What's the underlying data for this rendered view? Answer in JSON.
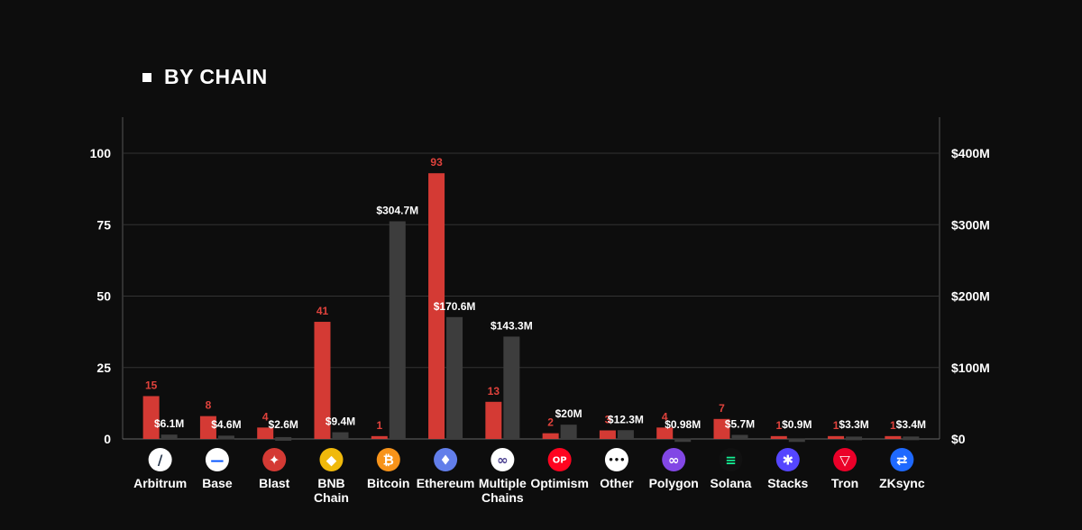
{
  "title": "BY CHAIN",
  "colors": {
    "count": "#d43a34",
    "value": "#3d3d3d",
    "background": "#0d0d0d"
  },
  "chart_data": {
    "type": "bar",
    "title": "BY CHAIN",
    "categories": [
      "Arbitrum",
      "Base",
      "Blast",
      "BNB Chain",
      "Bitcoin",
      "Ethereum",
      "Multiple Chains",
      "Optimism",
      "Other",
      "Polygon",
      "Solana",
      "Stacks",
      "Tron",
      "ZKsync"
    ],
    "category_icons": [
      "arbitrum-icon",
      "base-icon",
      "blast-icon",
      "bnb-chain-icon",
      "bitcoin-icon",
      "ethereum-icon",
      "multiple-chains-icon",
      "optimism-icon",
      "other-icon",
      "polygon-icon",
      "solana-icon",
      "stacks-icon",
      "tron-icon",
      "zksync-icon"
    ],
    "left_axis": {
      "ylim": [
        0,
        100
      ],
      "ticks": [
        "0",
        "25",
        "50",
        "75",
        "100"
      ]
    },
    "right_axis": {
      "ylim": [
        0,
        400
      ],
      "unit": "M",
      "ticks": [
        "$0",
        "$100M",
        "$200M",
        "$300M",
        "$400M"
      ]
    },
    "grid": true,
    "series": [
      {
        "axis": "left",
        "values": [
          15,
          8,
          4,
          41,
          1,
          93,
          13,
          2,
          3,
          4,
          7,
          1,
          1,
          1
        ],
        "labels": [
          "15",
          "8",
          "4",
          "41",
          "1",
          "93",
          "13",
          "2",
          "3",
          "4",
          "7",
          "1",
          "1",
          "1"
        ]
      },
      {
        "axis": "right",
        "values": [
          6.1,
          4.6,
          2.6,
          9.4,
          304.7,
          170.6,
          143.3,
          20,
          12.3,
          0.98,
          5.7,
          0.9,
          3.3,
          3.4
        ],
        "labels": [
          "$6.1M",
          "$4.6M",
          "$2.6M",
          "$9.4M",
          "$304.7M",
          "$170.6M",
          "$143.3M",
          "$20M",
          "$12.3M",
          "$0.98M",
          "$5.7M",
          "$0.9M",
          "$3.3M",
          "$3.4M"
        ]
      }
    ]
  }
}
